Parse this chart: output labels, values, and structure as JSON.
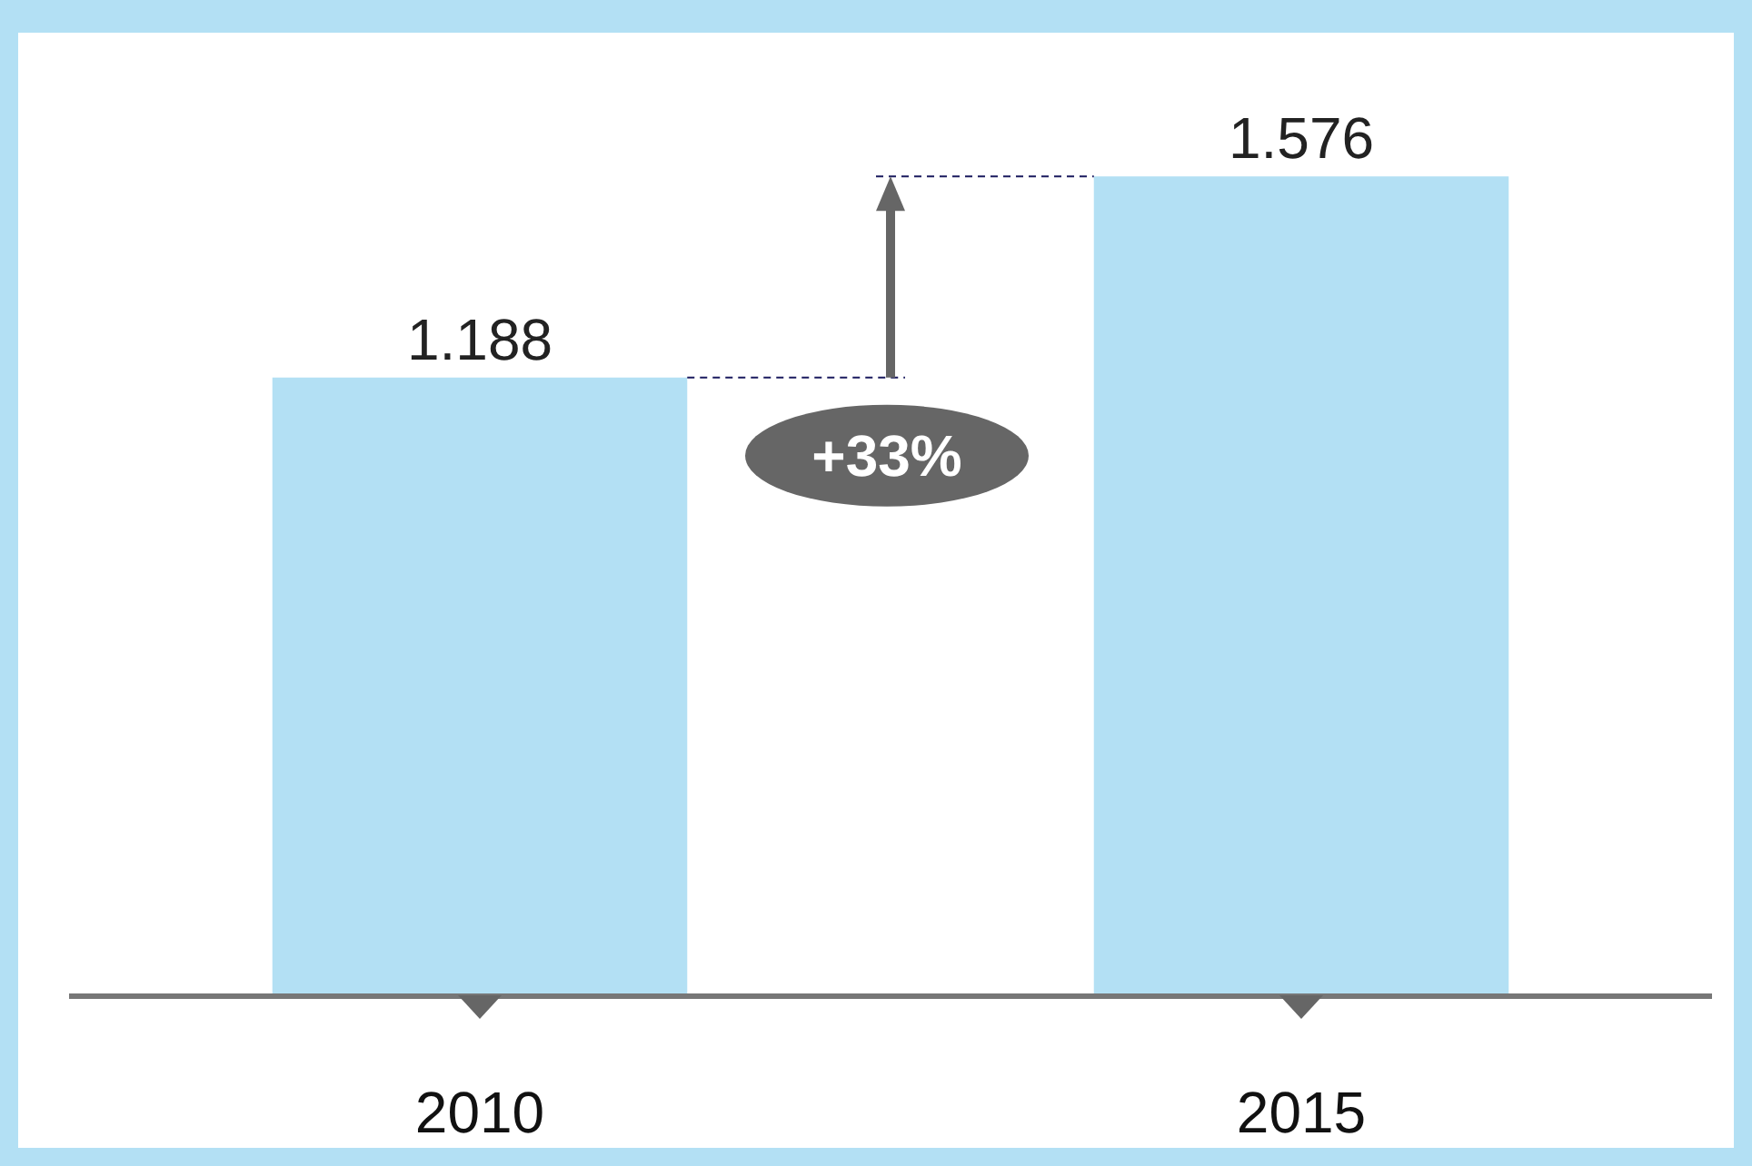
{
  "chart_data": {
    "type": "bar",
    "categories": [
      "2010",
      "2015"
    ],
    "values": [
      1.188,
      1.576
    ],
    "color": "#b3e0f4",
    "data_labels": true,
    "annotations": [
      "+33%"
    ]
  }
}
